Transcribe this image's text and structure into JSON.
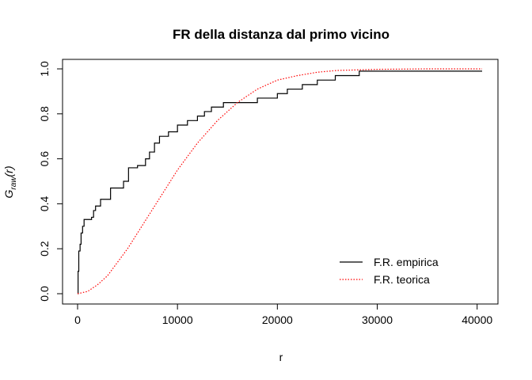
{
  "chart_data": {
    "type": "line",
    "title": "FR della distanza dal primo vicino",
    "xlabel": "r",
    "ylabel": {
      "base": "G",
      "subscript": "raw",
      "suffix": "(r)"
    },
    "xlim": [
      0,
      40500
    ],
    "ylim": [
      0,
      1
    ],
    "x_ticks": [
      0,
      10000,
      20000,
      30000,
      40000
    ],
    "y_ticks": [
      0.0,
      0.2,
      0.4,
      0.6,
      0.8,
      1.0
    ],
    "x_tick_labels": [
      "0",
      "10000",
      "20000",
      "30000",
      "40000"
    ],
    "y_tick_labels": [
      "0.0",
      "0.2",
      "0.4",
      "0.6",
      "0.8",
      "1.0"
    ],
    "grid": false,
    "legend_position": "bottom-right",
    "series": [
      {
        "name": "F.R. empirica",
        "style": "step",
        "color": "#000000",
        "dash": "solid",
        "points": [
          [
            0,
            0.0
          ],
          [
            50,
            0.1
          ],
          [
            120,
            0.19
          ],
          [
            250,
            0.22
          ],
          [
            350,
            0.27
          ],
          [
            500,
            0.3
          ],
          [
            650,
            0.33
          ],
          [
            1400,
            0.34
          ],
          [
            1600,
            0.37
          ],
          [
            1800,
            0.39
          ],
          [
            2300,
            0.42
          ],
          [
            3300,
            0.47
          ],
          [
            4600,
            0.5
          ],
          [
            5100,
            0.56
          ],
          [
            6000,
            0.57
          ],
          [
            6800,
            0.6
          ],
          [
            7200,
            0.63
          ],
          [
            7700,
            0.67
          ],
          [
            8200,
            0.7
          ],
          [
            9100,
            0.72
          ],
          [
            10000,
            0.75
          ],
          [
            11000,
            0.77
          ],
          [
            12000,
            0.79
          ],
          [
            12700,
            0.81
          ],
          [
            13400,
            0.83
          ],
          [
            14600,
            0.85
          ],
          [
            18000,
            0.87
          ],
          [
            20000,
            0.89
          ],
          [
            21000,
            0.91
          ],
          [
            22500,
            0.93
          ],
          [
            24000,
            0.95
          ],
          [
            25800,
            0.97
          ],
          [
            28200,
            0.99
          ],
          [
            40500,
            0.99
          ]
        ]
      },
      {
        "name": "F.R. teorica",
        "style": "line",
        "color": "#ff0000",
        "dash": "dotted",
        "points": [
          [
            0,
            0.0
          ],
          [
            1000,
            0.01
          ],
          [
            2000,
            0.04
          ],
          [
            3000,
            0.08
          ],
          [
            4000,
            0.14
          ],
          [
            5000,
            0.2
          ],
          [
            6000,
            0.27
          ],
          [
            7000,
            0.34
          ],
          [
            8000,
            0.41
          ],
          [
            9000,
            0.48
          ],
          [
            10000,
            0.55
          ],
          [
            11000,
            0.61
          ],
          [
            12000,
            0.67
          ],
          [
            13000,
            0.72
          ],
          [
            14000,
            0.77
          ],
          [
            15000,
            0.81
          ],
          [
            16000,
            0.85
          ],
          [
            17000,
            0.88
          ],
          [
            18000,
            0.91
          ],
          [
            19000,
            0.93
          ],
          [
            20000,
            0.95
          ],
          [
            22000,
            0.97
          ],
          [
            24000,
            0.985
          ],
          [
            26000,
            0.993
          ],
          [
            30000,
            0.998
          ],
          [
            35000,
            1.0
          ],
          [
            40500,
            1.0
          ]
        ]
      }
    ]
  }
}
